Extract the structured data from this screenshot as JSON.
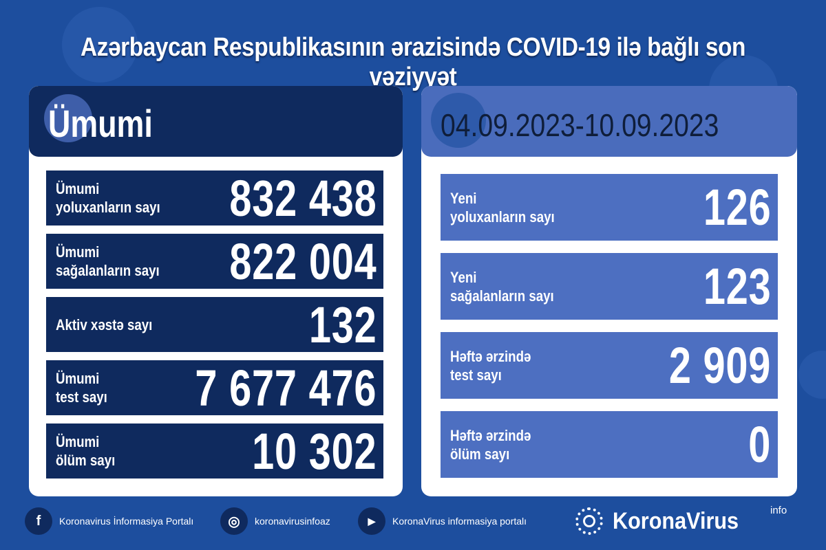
{
  "title": "Azərbaycan Respublikasının ərazisində COVID-19 ilə bağlı son vəziyyət",
  "left": {
    "heading": "Ümumi",
    "rows": [
      {
        "label": "Ümumi\nyoluxanların sayı",
        "value": "832 438"
      },
      {
        "label": "Ümumi\nsağalanların sayı",
        "value": "822 004"
      },
      {
        "label": "Aktiv xəstə sayı",
        "value": "132"
      },
      {
        "label": "Ümumi\ntest sayı",
        "value": "7 677 476"
      },
      {
        "label": "Ümumi\nölüm sayı",
        "value": "10 302"
      }
    ]
  },
  "right": {
    "heading": "04.09.2023-10.09.2023",
    "rows": [
      {
        "label": "Yeni\nyoluxanların sayı",
        "value": "126"
      },
      {
        "label": "Yeni\nsağalanların sayı",
        "value": "123"
      },
      {
        "label": "Həftə ərzində\ntest sayı",
        "value": "2 909"
      },
      {
        "label": "Həftə ərzində\nölüm sayı",
        "value": "0"
      }
    ]
  },
  "footer": {
    "facebook": "Koronavirus İnformasiya Portalı",
    "instagram": "koronavirusinfoaz",
    "youtube": "KoronaVirus informasiya portalı"
  },
  "brand": {
    "name": "KoronaVirus",
    "sup": "info"
  },
  "colors": {
    "background": "#1d4e9e",
    "navy": "#0f2a5e",
    "light_blue": "#4d6fc1"
  }
}
